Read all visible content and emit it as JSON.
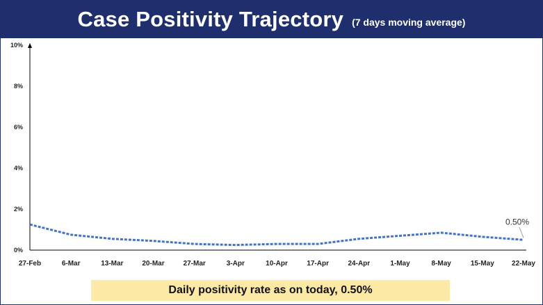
{
  "header": {
    "title": "Case Positivity Trajectory",
    "subtitle": "(7 days moving average)"
  },
  "chart_data": {
    "type": "line",
    "title": "Case Positivity Trajectory",
    "subtitle": "(7 days moving average)",
    "xlabel": "",
    "ylabel": "",
    "ylim": [
      0,
      10
    ],
    "yticks": [
      "0%",
      "2%",
      "4%",
      "6%",
      "8%",
      "10%"
    ],
    "categories": [
      "27-Feb",
      "6-Mar",
      "13-Mar",
      "20-Mar",
      "27-Mar",
      "3-Apr",
      "10-Apr",
      "17-Apr",
      "24-Apr",
      "1-May",
      "8-May",
      "15-May",
      "22-May"
    ],
    "grid": false,
    "legend": "none",
    "series": [
      {
        "color": "#4472c4",
        "style": "dashed",
        "values": [
          1.25,
          0.75,
          0.55,
          0.45,
          0.3,
          0.25,
          0.3,
          0.3,
          0.55,
          0.7,
          0.85,
          0.65,
          0.5
        ]
      }
    ],
    "annotations": [
      {
        "category": "22-May",
        "value": 0.5,
        "text": "0.50%"
      }
    ]
  },
  "footer_note": "Daily positivity rate as on today, 0.50%"
}
